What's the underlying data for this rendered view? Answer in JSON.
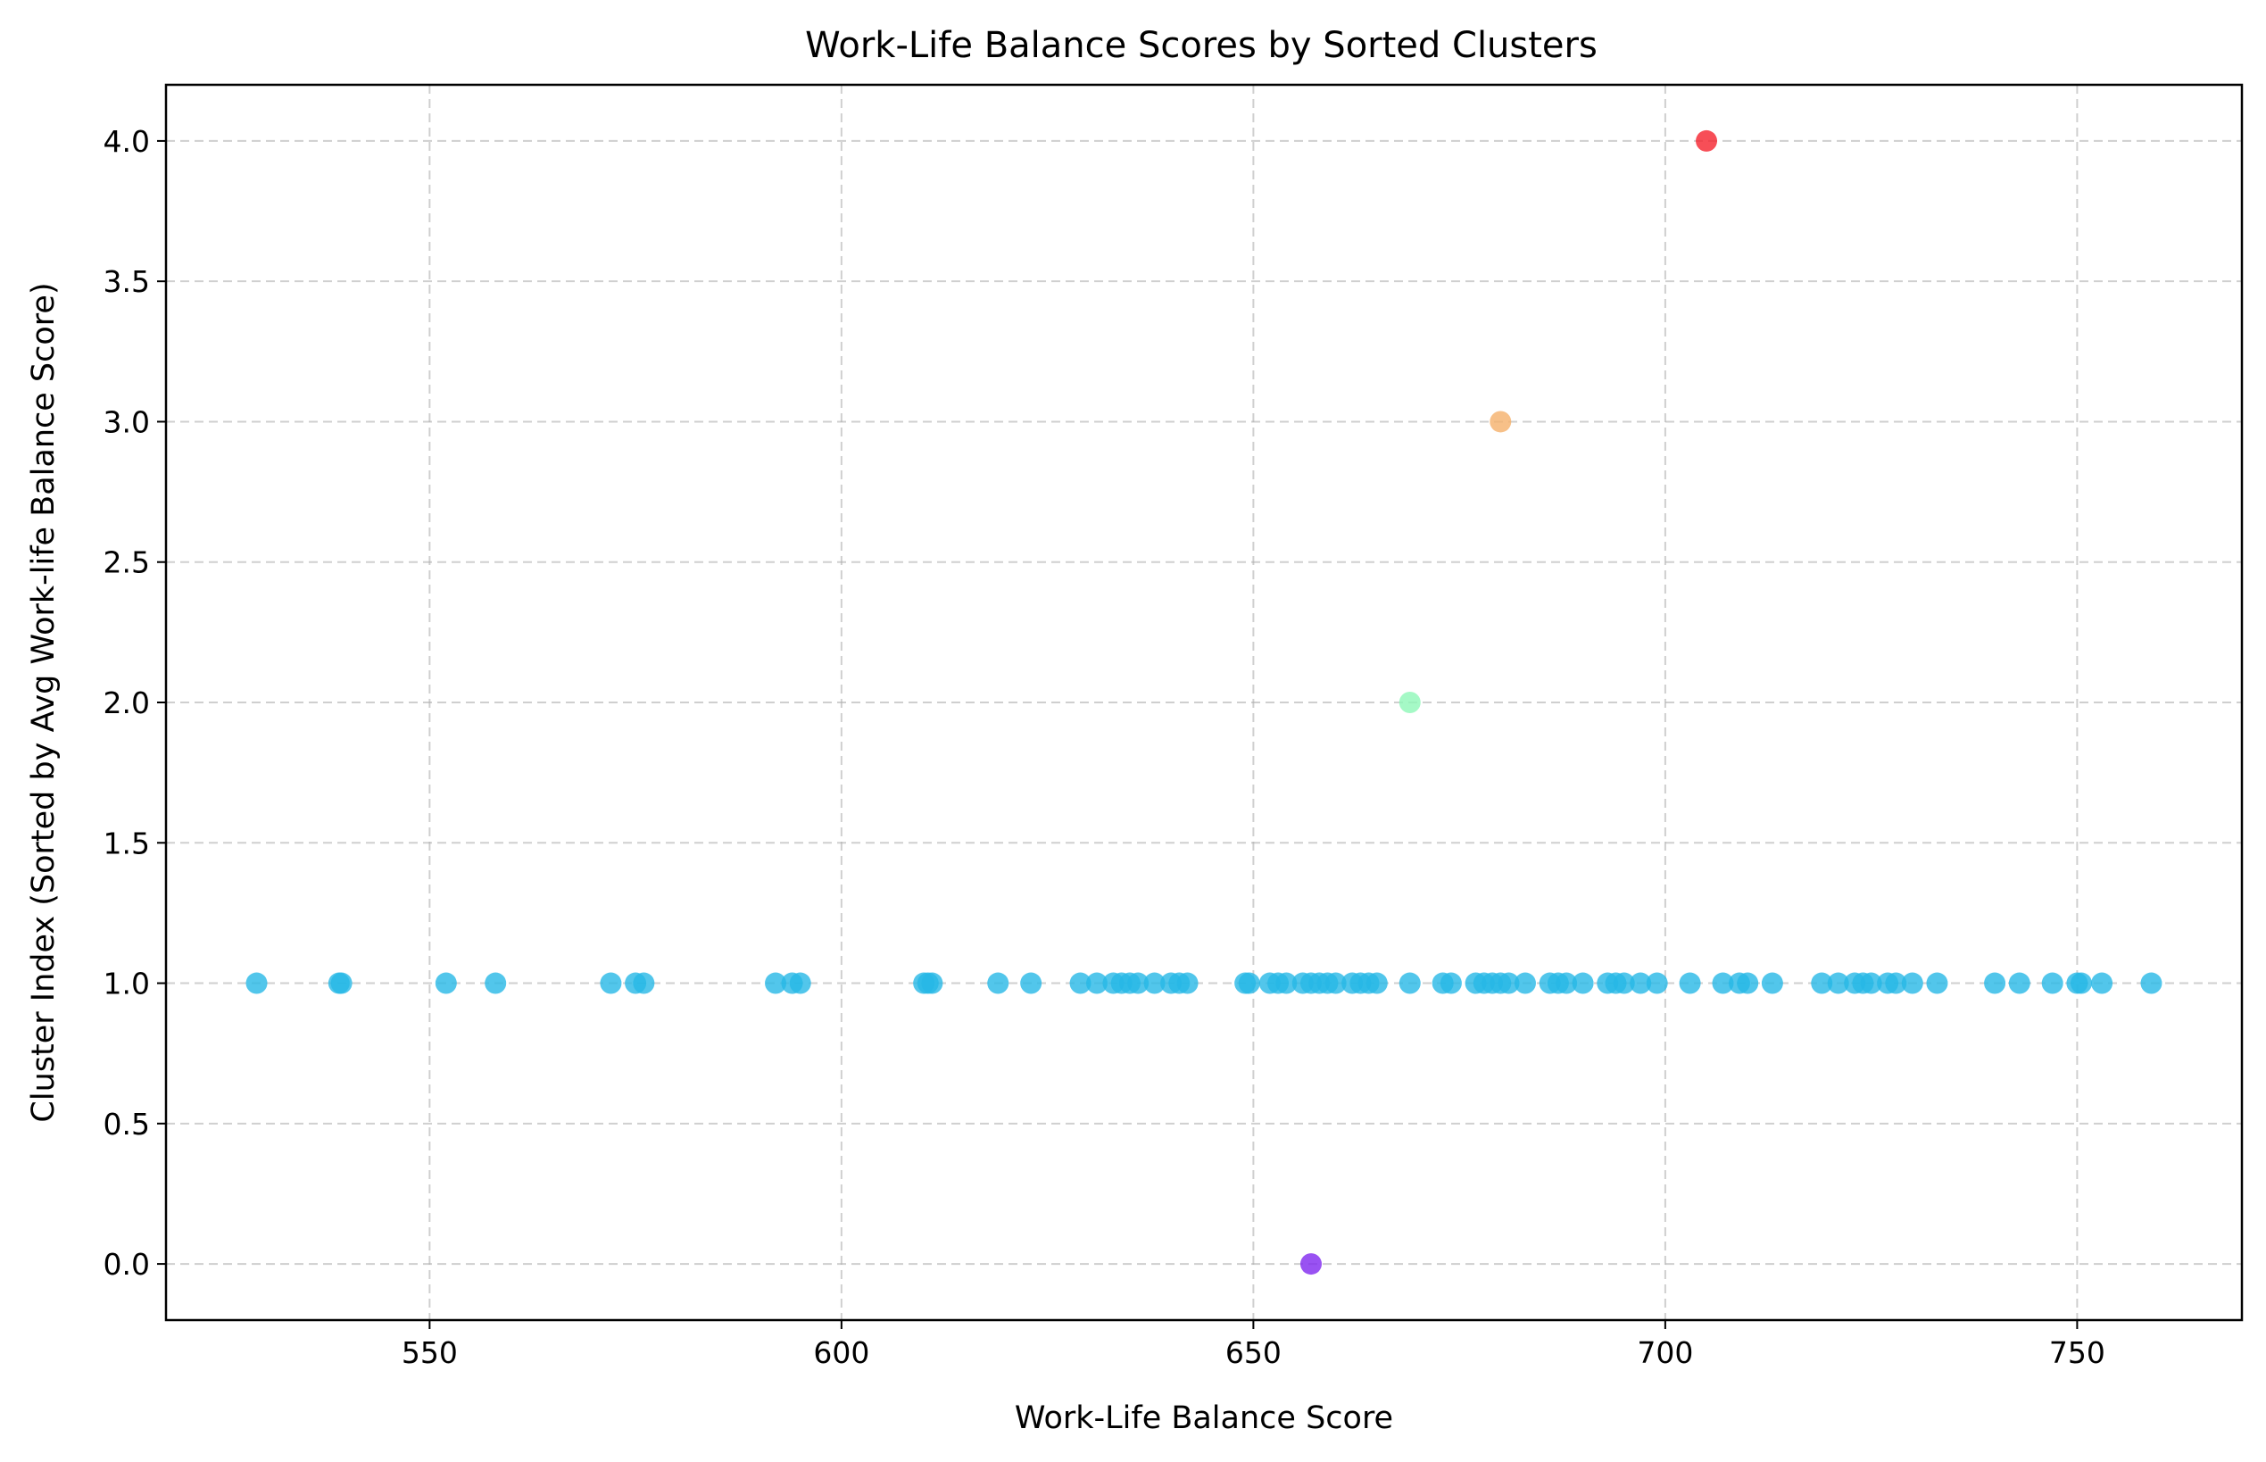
{
  "chart_data": {
    "type": "scatter",
    "title": "Work-Life Balance Scores by Sorted Clusters",
    "xlabel": "Work-Life Balance Score",
    "ylabel": "Cluster Index (Sorted by Avg Work-life Balance Score)",
    "xlim": [
      518,
      770
    ],
    "ylim": [
      -0.2,
      4.2
    ],
    "xticks": [
      550,
      600,
      650,
      700,
      750
    ],
    "xtick_labels": [
      "550",
      "600",
      "650",
      "700",
      "750"
    ],
    "yticks": [
      0.0,
      0.5,
      1.0,
      1.5,
      2.0,
      2.5,
      3.0,
      3.5,
      4.0
    ],
    "ytick_labels": [
      "0.0",
      "0.5",
      "1.0",
      "1.5",
      "2.0",
      "2.5",
      "3.0",
      "3.5",
      "4.0"
    ],
    "grid": true,
    "colors": {
      "0": "#7f27ef",
      "1": "#27b8e6",
      "2": "#8ef7b8",
      "3": "#f5b06a",
      "4": "#f5222d"
    },
    "series": [
      {
        "cluster": 0,
        "color": "#7f27ef",
        "x": [
          657
        ],
        "y": [
          0
        ]
      },
      {
        "cluster": 1,
        "color": "#27b8e6",
        "x": [
          529,
          539,
          539.3,
          552,
          558,
          572,
          575,
          576,
          592,
          594,
          595,
          610,
          610.5,
          611,
          619,
          623,
          629,
          631,
          633,
          634,
          635,
          636,
          638,
          640,
          641,
          642,
          649,
          649.5,
          652,
          653,
          654,
          656,
          657,
          658,
          659,
          660,
          662,
          663,
          664,
          665,
          669,
          673,
          674,
          677,
          678,
          679,
          680,
          681,
          683,
          686,
          687,
          688,
          690,
          693,
          694,
          695,
          697,
          699,
          703,
          707,
          709,
          710,
          713,
          719,
          721,
          723,
          724,
          725,
          727,
          728,
          730,
          733,
          740,
          743,
          747,
          750,
          750.5,
          753,
          759
        ],
        "y": [
          1,
          1,
          1,
          1,
          1,
          1,
          1,
          1,
          1,
          1,
          1,
          1,
          1,
          1,
          1,
          1,
          1,
          1,
          1,
          1,
          1,
          1,
          1,
          1,
          1,
          1,
          1,
          1,
          1,
          1,
          1,
          1,
          1,
          1,
          1,
          1,
          1,
          1,
          1,
          1,
          1,
          1,
          1,
          1,
          1,
          1,
          1,
          1,
          1,
          1,
          1,
          1,
          1,
          1,
          1,
          1,
          1,
          1,
          1,
          1,
          1,
          1,
          1,
          1,
          1,
          1,
          1,
          1,
          1,
          1,
          1,
          1,
          1,
          1,
          1,
          1,
          1,
          1,
          1
        ]
      },
      {
        "cluster": 2,
        "color": "#8ef7b8",
        "x": [
          669
        ],
        "y": [
          2
        ]
      },
      {
        "cluster": 3,
        "color": "#f5b06a",
        "x": [
          680
        ],
        "y": [
          3
        ]
      },
      {
        "cluster": 4,
        "color": "#f5222d",
        "x": [
          705
        ],
        "y": [
          4
        ]
      }
    ]
  }
}
